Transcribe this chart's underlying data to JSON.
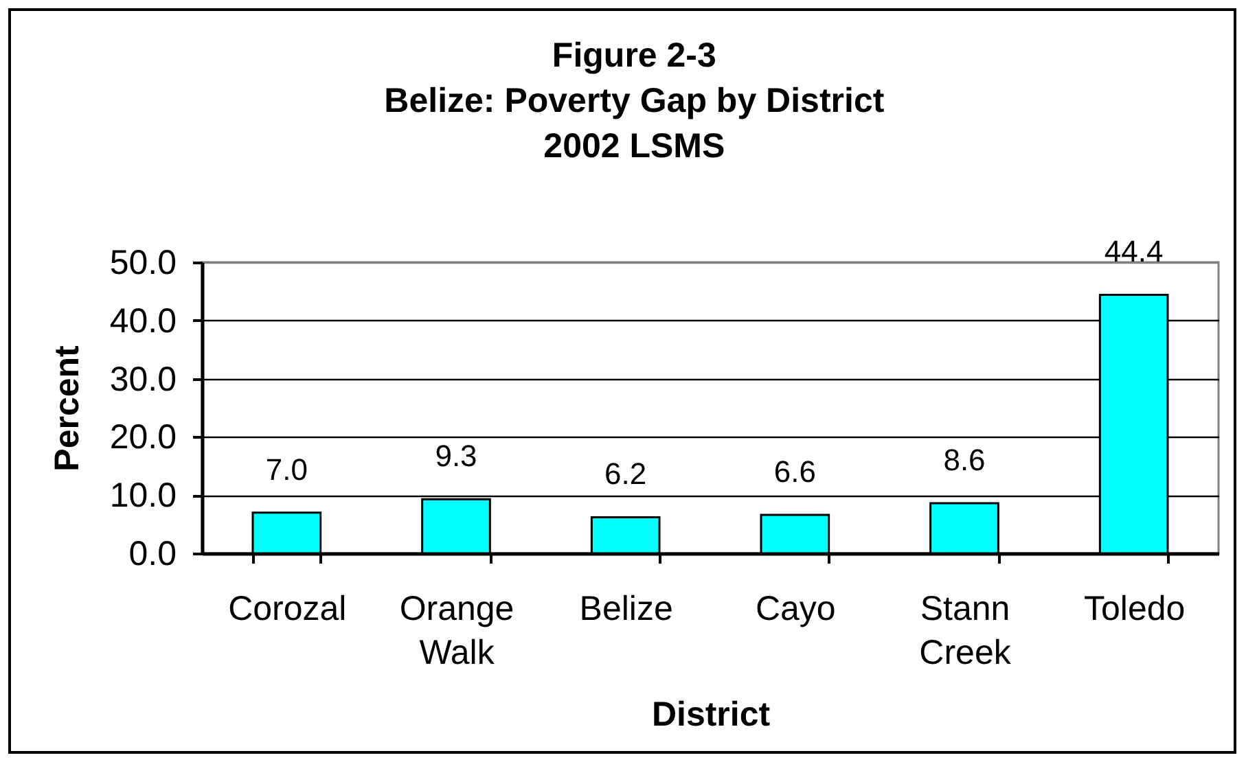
{
  "chart_data": {
    "type": "bar",
    "title": "Figure 2-3\nBelize: Poverty Gap by District\n2002 LSMS",
    "xlabel": "District",
    "ylabel": "Percent",
    "categories": [
      "Corozal",
      "Orange Walk",
      "Belize",
      "Cayo",
      "Stann Creek",
      "Toledo"
    ],
    "values": [
      7.0,
      9.3,
      6.2,
      6.6,
      8.6,
      44.4
    ],
    "color": "#00ffff",
    "value_labels": [
      "7.0",
      "9.3",
      "6.2",
      "6.6",
      "8.6",
      "44.4"
    ],
    "ylim": [
      0,
      50
    ],
    "yticks": [
      {
        "value": 0,
        "label": "0.0"
      },
      {
        "value": 10,
        "label": "10.0"
      },
      {
        "value": 20,
        "label": "20.0"
      },
      {
        "value": 30,
        "label": "30.0"
      },
      {
        "value": 40,
        "label": "40.0"
      },
      {
        "value": 50,
        "label": "50.0"
      }
    ],
    "grid": "y"
  }
}
